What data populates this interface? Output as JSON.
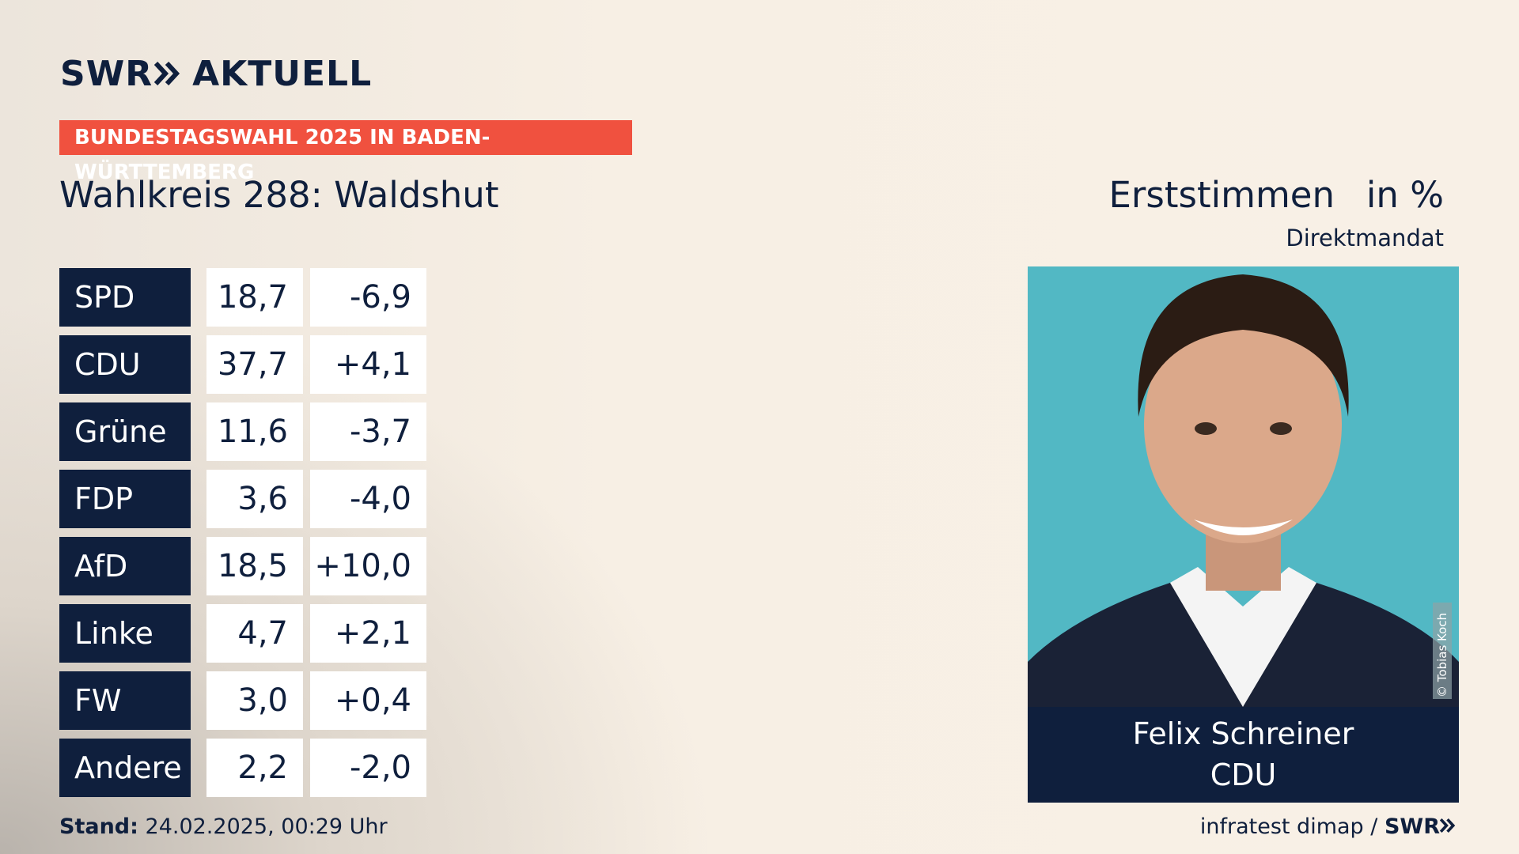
{
  "header": {
    "brand": "SWR",
    "brand_suffix": "AKTUELL",
    "banner": "BUNDESTAGSWAHL 2025 IN BADEN-WÜRTTEMBERG",
    "title": "Wahlkreis 288: Waldshut",
    "measure": "Erststimmen",
    "unit": "in %",
    "subtitle": "Direktmandat"
  },
  "table": {
    "rows": [
      [
        "SPD",
        "18,7",
        "-6,9"
      ],
      [
        "CDU",
        "37,7",
        "+4,1"
      ],
      [
        "Grüne",
        "11,6",
        "-3,7"
      ],
      [
        "FDP",
        "3,6",
        "-4,0"
      ],
      [
        "AfD",
        "18,5",
        "+10,0"
      ],
      [
        "Linke",
        "4,7",
        "+2,1"
      ],
      [
        "FW",
        "3,0",
        "+0,4"
      ],
      [
        "Andere",
        "2,2",
        "-2,0"
      ]
    ]
  },
  "candidate": {
    "photo_credit": "© Tobias Koch",
    "name": "Felix Schreiner",
    "party": "CDU"
  },
  "footer": {
    "stand_label": "Stand:",
    "stand": "24.02.2025, 00:29 Uhr",
    "source": "infratest dimap /",
    "brand": "SWR"
  }
}
